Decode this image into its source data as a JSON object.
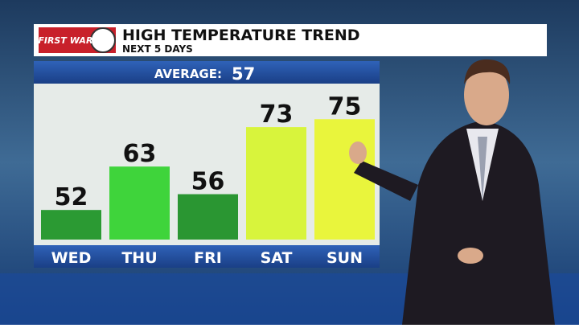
{
  "chart_data": {
    "type": "bar",
    "logo": "FIRST WARN",
    "title": "HIGH TEMPERATURE TREND",
    "subtitle": "NEXT 5 DAYS",
    "average_label": "AVERAGE:",
    "average": 57,
    "categories": [
      "WED",
      "THU",
      "FRI",
      "SAT",
      "SUN"
    ],
    "values": [
      52,
      63,
      56,
      73,
      75
    ],
    "colors": [
      "#2b9a33",
      "#3fd43b",
      "#2a9632",
      "#d8f43c",
      "#e9f53c"
    ],
    "ylim": [
      44.5,
      83
    ]
  }
}
